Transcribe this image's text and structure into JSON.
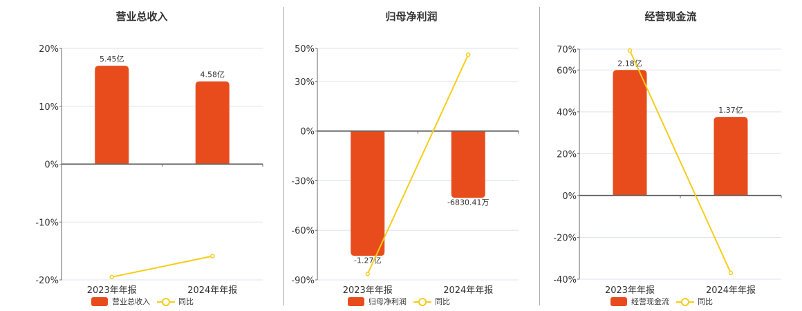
{
  "colors": {
    "bar": "#e84c1c",
    "line": "#f5cd19",
    "grid": "#dde3ee",
    "axis": "#666666"
  },
  "legend_line_label": "同比",
  "chart_data": [
    {
      "type": "bar+line",
      "title": "营业总收入",
      "categories": [
        "2023年年报",
        "2024年年报"
      ],
      "y_ticks": [
        "20%",
        "10%",
        "0%",
        "-10%",
        "-20%"
      ],
      "ylim": [
        -20,
        20
      ],
      "bar_series": {
        "name": "营业总收入",
        "values_pct_axis": [
          17.0,
          14.3
        ],
        "labels": [
          "5.45亿",
          "4.58亿"
        ]
      },
      "line_series": {
        "name": "同比",
        "values": [
          -19.5,
          -15.9
        ]
      },
      "legend_position": "bottom",
      "grid": true
    },
    {
      "type": "bar+line",
      "title": "归母净利润",
      "categories": [
        "2023年年报",
        "2024年年报"
      ],
      "y_ticks": [
        "50%",
        "30%",
        "0%",
        "-30%",
        "-60%",
        "-90%"
      ],
      "ylim": [
        -90,
        50
      ],
      "bar_series": {
        "name": "归母净利润",
        "values_pct_axis": [
          -75.5,
          -40.4
        ],
        "labels": [
          "-1.27亿",
          "-6830.41万"
        ]
      },
      "line_series": {
        "name": "同比",
        "values": [
          -86.4,
          46.2
        ]
      },
      "legend_position": "bottom",
      "grid": true
    },
    {
      "type": "bar+line",
      "title": "经营现金流",
      "categories": [
        "2023年年报",
        "2024年年报"
      ],
      "y_ticks": [
        "70%",
        "60%",
        "40%",
        "20%",
        "0%",
        "-20%",
        "-40%"
      ],
      "ylim": [
        -40,
        70
      ],
      "bar_series": {
        "name": "经营现金流",
        "values_pct_axis": [
          60.0,
          37.6
        ],
        "labels": [
          "2.18亿",
          "1.37亿"
        ]
      },
      "line_series": {
        "name": "同比",
        "values": [
          69.3,
          -37.0
        ]
      },
      "legend_position": "bottom",
      "grid": true
    }
  ]
}
